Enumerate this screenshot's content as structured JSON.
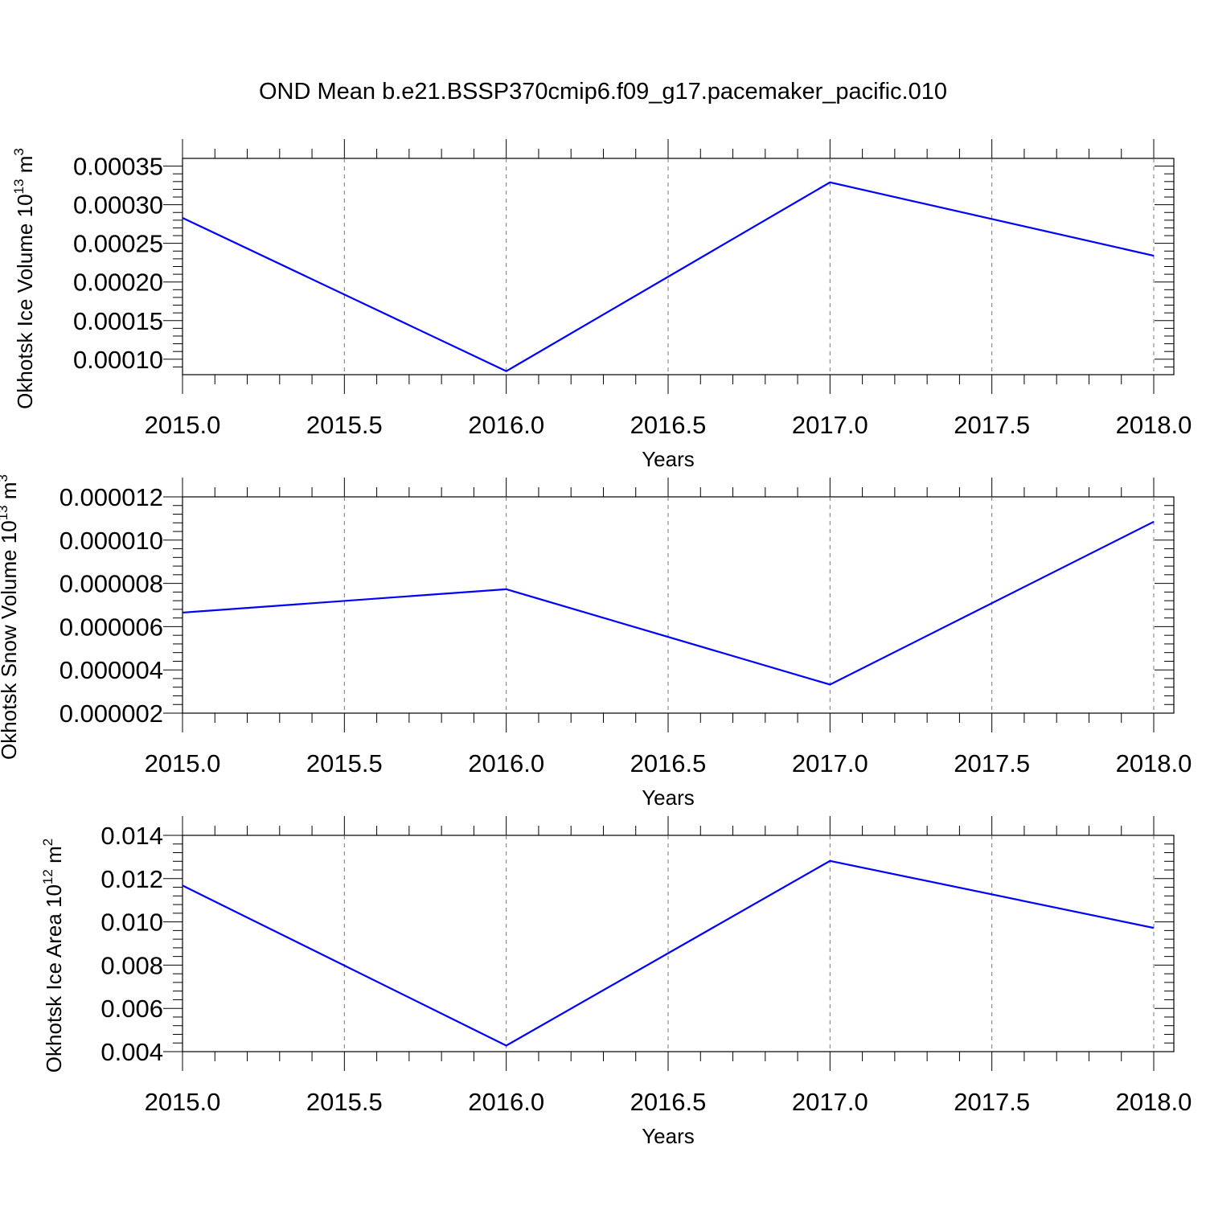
{
  "figure": {
    "title": "OND Mean b.e21.BSSP370cmip6.f09_g17.pacemaker_pacific.010"
  },
  "chart_data": [
    {
      "type": "line",
      "ylabel": "Okhotsk Ice Volume 10",
      "ylabel_exp": "13",
      "ylabel_unit": " m",
      "ylabel_unit_exp": "3",
      "xlabel": "Years",
      "xlim": [
        2015.0,
        2018.0
      ],
      "ylim": [
        8e-05,
        0.00036
      ],
      "xticks": [
        "2015.0",
        "2015.5",
        "2016.0",
        "2016.5",
        "2017.0",
        "2017.5",
        "2018.0"
      ],
      "yticks": [
        "0.00010",
        "0.00015",
        "0.00020",
        "0.00025",
        "0.00030",
        "0.00035"
      ],
      "x": [
        2015,
        2016,
        2017,
        2018
      ],
      "series": [
        {
          "values": [
            0.000283,
            8.45e-05,
            0.000329,
            0.000234
          ],
          "color": "#0000ff"
        }
      ],
      "grid": "vertical dashed"
    },
    {
      "type": "line",
      "ylabel": "Okhotsk Snow Volume 10",
      "ylabel_exp": "13",
      "ylabel_unit": " m",
      "ylabel_unit_exp": "3",
      "xlabel": "Years",
      "xlim": [
        2015.0,
        2018.0
      ],
      "ylim": [
        2e-06,
        1.2e-05
      ],
      "xticks": [
        "2015.0",
        "2015.5",
        "2016.0",
        "2016.5",
        "2017.0",
        "2017.5",
        "2018.0"
      ],
      "yticks": [
        "0.000002",
        "0.000004",
        "0.000006",
        "0.000008",
        "0.000010",
        "0.000012"
      ],
      "x": [
        2015,
        2016,
        2017,
        2018
      ],
      "series": [
        {
          "values": [
            6.65e-06,
            7.73e-06,
            3.32e-06,
            1.085e-05
          ],
          "color": "#0000ff"
        }
      ],
      "grid": "vertical dashed"
    },
    {
      "type": "line",
      "ylabel": "Okhotsk Ice Area 10",
      "ylabel_exp": "12",
      "ylabel_unit": " m",
      "ylabel_unit_exp": "2",
      "xlabel": "Years",
      "xlim": [
        2015.0,
        2018.0
      ],
      "ylim": [
        0.004,
        0.014
      ],
      "xticks": [
        "2015.0",
        "2015.5",
        "2016.0",
        "2016.5",
        "2017.0",
        "2017.5",
        "2018.0"
      ],
      "yticks": [
        "0.004",
        "0.006",
        "0.008",
        "0.010",
        "0.012",
        "0.014"
      ],
      "x": [
        2015,
        2016,
        2017,
        2018
      ],
      "series": [
        {
          "values": [
            0.01168,
            0.00428,
            0.01282,
            0.00972
          ],
          "color": "#0000ff"
        }
      ],
      "grid": "vertical dashed"
    }
  ]
}
